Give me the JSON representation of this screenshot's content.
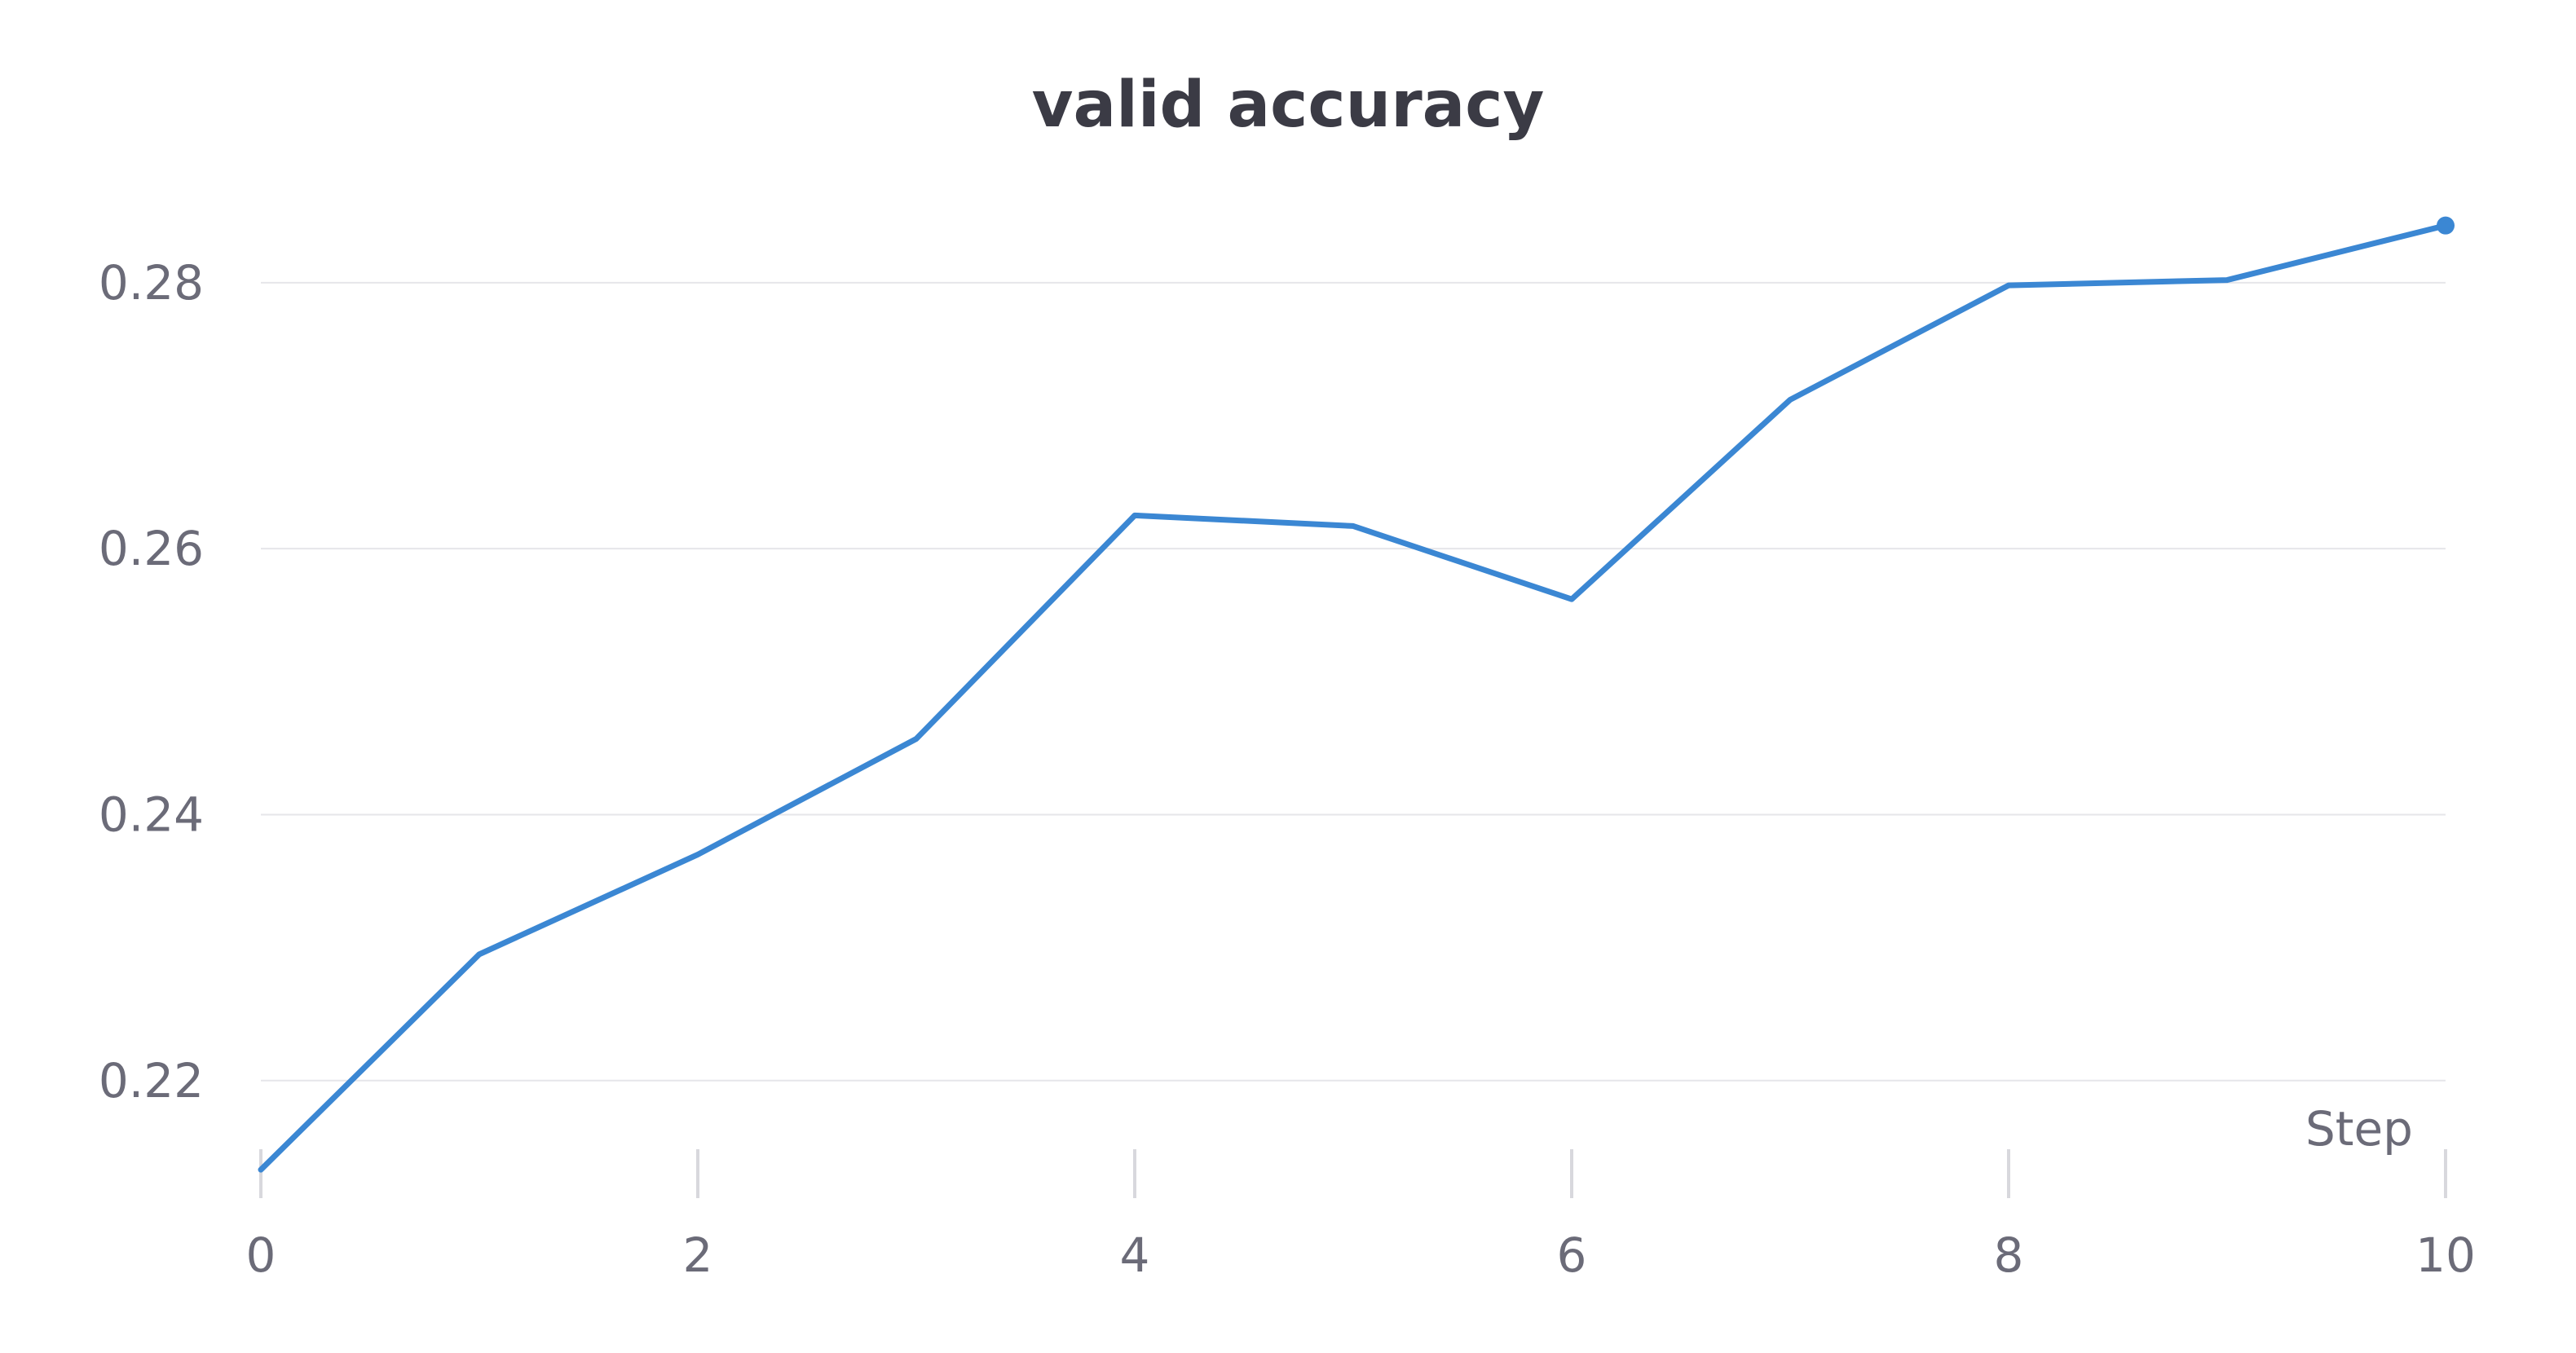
{
  "chart_data": {
    "type": "line",
    "title": "valid accuracy",
    "xlabel": "Step",
    "ylabel": "",
    "xlim": [
      0,
      10
    ],
    "ylim": [
      0.213,
      0.289
    ],
    "x_ticks": [
      0,
      2,
      4,
      6,
      8,
      10
    ],
    "x_tick_labels": [
      "0",
      "2",
      "4",
      "6",
      "8",
      "10"
    ],
    "y_ticks": [
      0.22,
      0.24,
      0.26,
      0.28
    ],
    "y_tick_labels": [
      "0.22",
      "0.24",
      "0.26",
      "0.28"
    ],
    "grid": "horizontal",
    "series": [
      {
        "color": "#3b87d3",
        "x": [
          0,
          1,
          2,
          3,
          4,
          5,
          6,
          7,
          8,
          9,
          10
        ],
        "y": [
          0.2133,
          0.2295,
          0.237,
          0.2457,
          0.2625,
          0.2617,
          0.2562,
          0.2712,
          0.2798,
          0.2802,
          0.2843
        ]
      }
    ],
    "colors": {
      "grid": "#e6e6ea",
      "tick": "#d8d8dd",
      "text": "#6b6b78",
      "title": "#3b3b45"
    }
  }
}
